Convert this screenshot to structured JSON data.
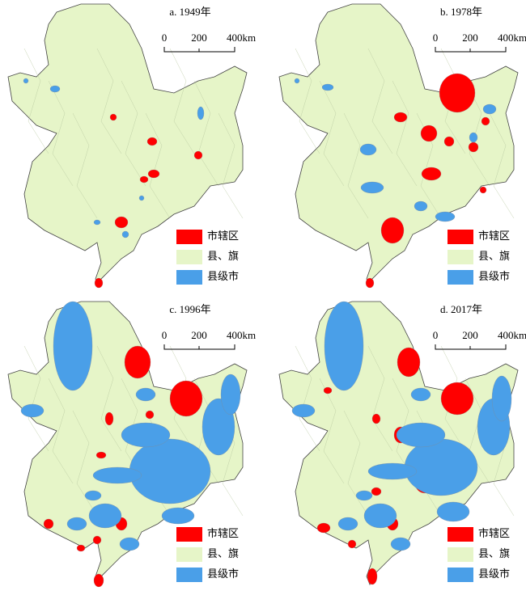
{
  "panels": [
    {
      "title": "a. 1949年",
      "scale_labels": [
        "0",
        "200",
        "400km"
      ],
      "legend": [
        {
          "label": "市辖区",
          "color": "#ff0000"
        },
        {
          "label": "县、旗",
          "color": "#e6f5c8"
        },
        {
          "label": "县级市",
          "color": "#4a9fe8"
        }
      ]
    },
    {
      "title": "b. 1978年",
      "scale_labels": [
        "0",
        "200",
        "400km"
      ],
      "legend": [
        {
          "label": "市辖区",
          "color": "#ff0000"
        },
        {
          "label": "县、旗",
          "color": "#e6f5c8"
        },
        {
          "label": "县级市",
          "color": "#4a9fe8"
        }
      ]
    },
    {
      "title": "c. 1996年",
      "scale_labels": [
        "0",
        "200",
        "400km"
      ],
      "legend": [
        {
          "label": "市辖区",
          "color": "#ff0000"
        },
        {
          "label": "县、旗",
          "color": "#e6f5c8"
        },
        {
          "label": "县级市",
          "color": "#4a9fe8"
        }
      ]
    },
    {
      "title": "d. 2017年",
      "scale_labels": [
        "0",
        "200",
        "400km"
      ],
      "legend": [
        {
          "label": "市辖区",
          "color": "#ff0000"
        },
        {
          "label": "县、旗",
          "color": "#e6f5c8"
        },
        {
          "label": "县级市",
          "color": "#4a9fe8"
        }
      ]
    }
  ]
}
